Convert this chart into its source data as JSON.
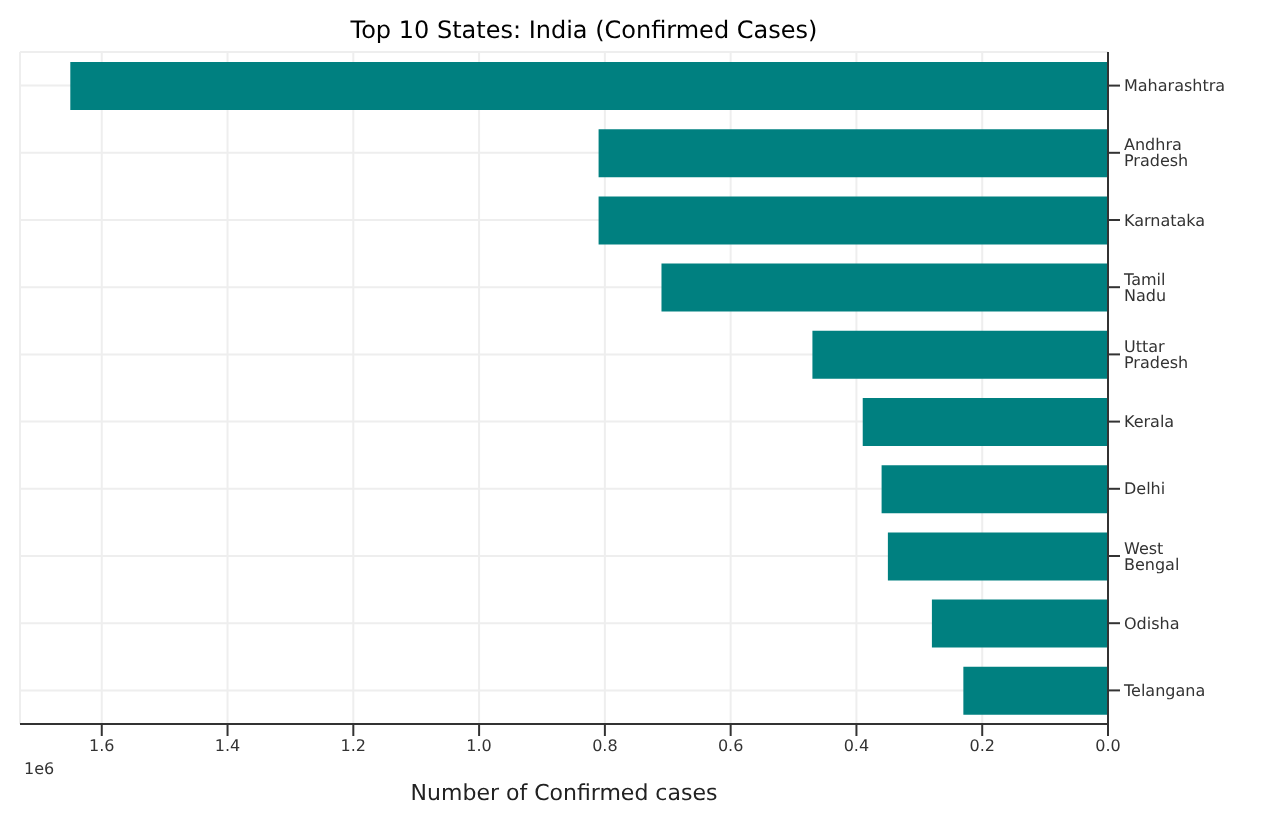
{
  "chart_data": {
    "type": "bar",
    "orientation": "horizontal",
    "title": "Top 10 States: India (Confirmed Cases)",
    "xlabel": "Number of Confirmed cases",
    "categories": [
      "Maharashtra",
      "Andhra Pradesh",
      "Karnataka",
      "Tamil Nadu",
      "Uttar Pradesh",
      "Kerala",
      "Delhi",
      "West Bengal",
      "Odisha",
      "Telangana"
    ],
    "values": [
      1.65,
      0.81,
      0.81,
      0.71,
      0.47,
      0.39,
      0.36,
      0.35,
      0.28,
      0.23
    ],
    "color": "#008080",
    "xlim": [
      1.73,
      0
    ],
    "xticks": [
      {
        "value": 0,
        "label": "0.0"
      },
      0.2,
      0.4,
      0.6,
      0.8,
      {
        "value": 1,
        "label": "1.0"
      },
      1.2,
      1.4,
      1.6
    ],
    "annotations": [
      "1e6"
    ],
    "grid": true
  }
}
